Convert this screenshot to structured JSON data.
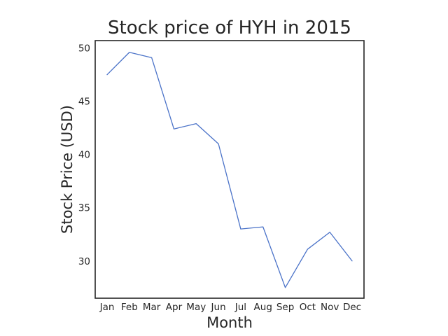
{
  "chart_data": {
    "type": "line",
    "title": "Stock price of HYH in 2015",
    "xlabel": "Month",
    "ylabel": "Stock Price (USD)",
    "categories": [
      "Jan",
      "Feb",
      "Mar",
      "Apr",
      "May",
      "Jun",
      "Jul",
      "Aug",
      "Sep",
      "Oct",
      "Nov",
      "Dec"
    ],
    "series": [
      {
        "values": [
          47.5,
          49.6,
          49.1,
          42.4,
          42.9,
          41.0,
          33.0,
          33.2,
          27.5,
          31.1,
          32.7,
          30.0
        ]
      }
    ],
    "yticks": [
      30,
      35,
      40,
      45,
      50
    ],
    "ylim": [
      26.5,
      50.7
    ],
    "grid": false,
    "line_color": "#4a72c8"
  }
}
